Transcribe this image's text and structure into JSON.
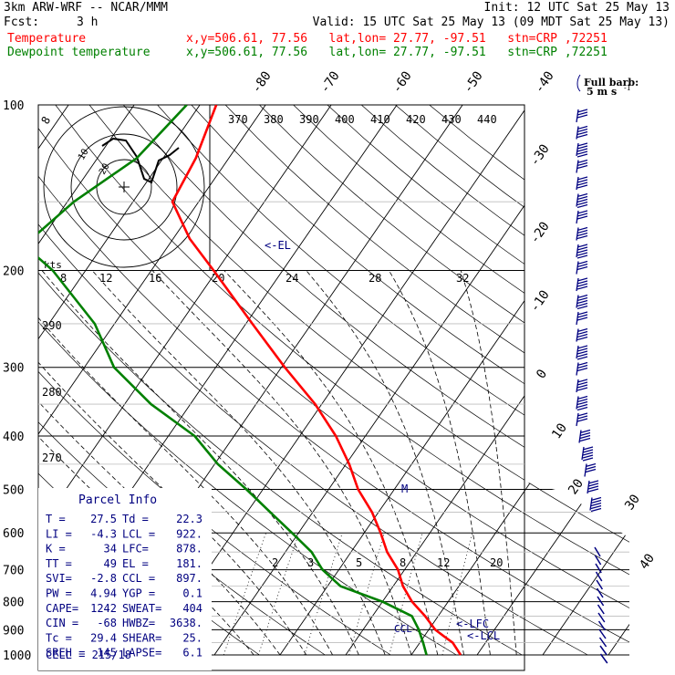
{
  "header": {
    "model": "3km ARW-WRF -- NCAR/MMM",
    "init": "Init: 12 UTC Sat 25 May 13",
    "fcst_label": "Fcst:",
    "fcst_value": "3 h",
    "valid": "Valid: 15 UTC Sat 25 May 13 (09 MDT Sat 25 May 13)",
    "lines": [
      {
        "name": "Temperature",
        "info": "x,y=506.61, 77.56   lat,lon= 27.77, -97.51   stn=CRP ,72251",
        "color": "#ff0000"
      },
      {
        "name": "Dewpoint temperature",
        "info": "x,y=506.61, 77.56   lat,lon= 27.77, -97.51   stn=CRP ,72251",
        "color": "#008000"
      }
    ]
  },
  "colors": {
    "temperature": "#ff0000",
    "dewpoint": "#008000",
    "barbs": "#000080",
    "labels": "#000080",
    "grid": "#000000"
  },
  "barb_legend": {
    "title": "Full barb:",
    "value": "5 m s",
    "exp": "-1"
  },
  "hodograph": {
    "kts_label": "kts",
    "ring_labels": [
      "8",
      "12",
      "16",
      "20",
      "24",
      "28",
      "32"
    ],
    "ring_small_labels": [
      "10",
      "20"
    ]
  },
  "pressure_labels": [
    "100",
    "200",
    "300",
    "400",
    "500",
    "600",
    "700",
    "800",
    "900",
    "1000"
  ],
  "isotherm_labels_top": [
    "-80",
    "-70",
    "-60",
    "-50",
    "-40"
  ],
  "isotherm_labels_right": [
    "-30",
    "-20",
    "-10",
    "0",
    "10",
    "20",
    "30",
    "40"
  ],
  "theta_labels": [
    "370",
    "380",
    "390",
    "400",
    "410",
    "420",
    "430",
    "440"
  ],
  "theta_labels_left": [
    "290",
    "280",
    "270"
  ],
  "mixing_ratio_labels": [
    "2",
    "3",
    "5",
    "8",
    "12",
    "20"
  ],
  "levels": {
    "el": "<-EL",
    "lfc": "<-LFC",
    "lcl": "<-LCL",
    "ccl": "CCL",
    "m": "M"
  },
  "parcel": {
    "title": "Parcel Info",
    "rows": [
      [
        "T  =",
        "27.5",
        "Td =",
        "22.3"
      ],
      [
        "LI =",
        "-4.3",
        "LCL =",
        "922."
      ],
      [
        "K  =",
        "34",
        "LFC=",
        "878."
      ],
      [
        "TT =",
        "49",
        "EL =",
        "181."
      ],
      [
        "SVI=",
        "-2.8",
        "CCL =",
        "897."
      ],
      [
        "PW =",
        "4.94",
        "YGP =",
        "0.1"
      ],
      [
        "CAPE=",
        "1242",
        "SWEAT=",
        "404"
      ],
      [
        "CIN =",
        "-68",
        "HWBZ=",
        "3638."
      ],
      [
        "Tc =",
        "29.4",
        "SHEAR=",
        "25."
      ],
      [
        "SREH =",
        "145",
        "LAPSE=",
        "6.1"
      ]
    ],
    "cell": "CELL = 215/18"
  },
  "chart_data": {
    "type": "line",
    "title": "",
    "xlabel": "",
    "ylabel": "",
    "y_axis": "pressure (hPa), log scale",
    "ylim": [
      1000,
      100
    ],
    "series": [
      {
        "name": "Temperature",
        "color": "#ff0000",
        "values": [
          {
            "p": 1000,
            "t": 27.5
          },
          {
            "p": 950,
            "t": 25.0
          },
          {
            "p": 925,
            "t": 23.0
          },
          {
            "p": 900,
            "t": 21.0
          },
          {
            "p": 850,
            "t": 18.0
          },
          {
            "p": 800,
            "t": 14.5
          },
          {
            "p": 750,
            "t": 11.5
          },
          {
            "p": 700,
            "t": 9.0
          },
          {
            "p": 650,
            "t": 5.5
          },
          {
            "p": 600,
            "t": 2.5
          },
          {
            "p": 550,
            "t": -1.0
          },
          {
            "p": 500,
            "t": -5.5
          },
          {
            "p": 450,
            "t": -9.5
          },
          {
            "p": 400,
            "t": -14.5
          },
          {
            "p": 350,
            "t": -21.0
          },
          {
            "p": 300,
            "t": -29.5
          },
          {
            "p": 250,
            "t": -39.0
          },
          {
            "p": 200,
            "t": -50.5
          },
          {
            "p": 175,
            "t": -57.5
          },
          {
            "p": 150,
            "t": -64.0
          },
          {
            "p": 125,
            "t": -65.0
          },
          {
            "p": 100,
            "t": -67.5
          }
        ]
      },
      {
        "name": "Dewpoint temperature",
        "color": "#008000",
        "values": [
          {
            "p": 1000,
            "t": 22.3
          },
          {
            "p": 950,
            "t": 20.5
          },
          {
            "p": 925,
            "t": 19.5
          },
          {
            "p": 900,
            "t": 18.5
          },
          {
            "p": 850,
            "t": 16.0
          },
          {
            "p": 800,
            "t": 10.0
          },
          {
            "p": 750,
            "t": 2.0
          },
          {
            "p": 700,
            "t": -2.5
          },
          {
            "p": 650,
            "t": -6.0
          },
          {
            "p": 600,
            "t": -11.0
          },
          {
            "p": 550,
            "t": -16.5
          },
          {
            "p": 500,
            "t": -22.5
          },
          {
            "p": 450,
            "t": -29.5
          },
          {
            "p": 400,
            "t": -36.0
          },
          {
            "p": 350,
            "t": -46.0
          },
          {
            "p": 300,
            "t": -55.5
          },
          {
            "p": 250,
            "t": -63.0
          },
          {
            "p": 200,
            "t": -75.0
          },
          {
            "p": 180,
            "t": -82.0
          },
          {
            "p": 150,
            "t": -79.0
          },
          {
            "p": 125,
            "t": -74.0
          },
          {
            "p": 100,
            "t": -72.0
          }
        ]
      }
    ]
  }
}
